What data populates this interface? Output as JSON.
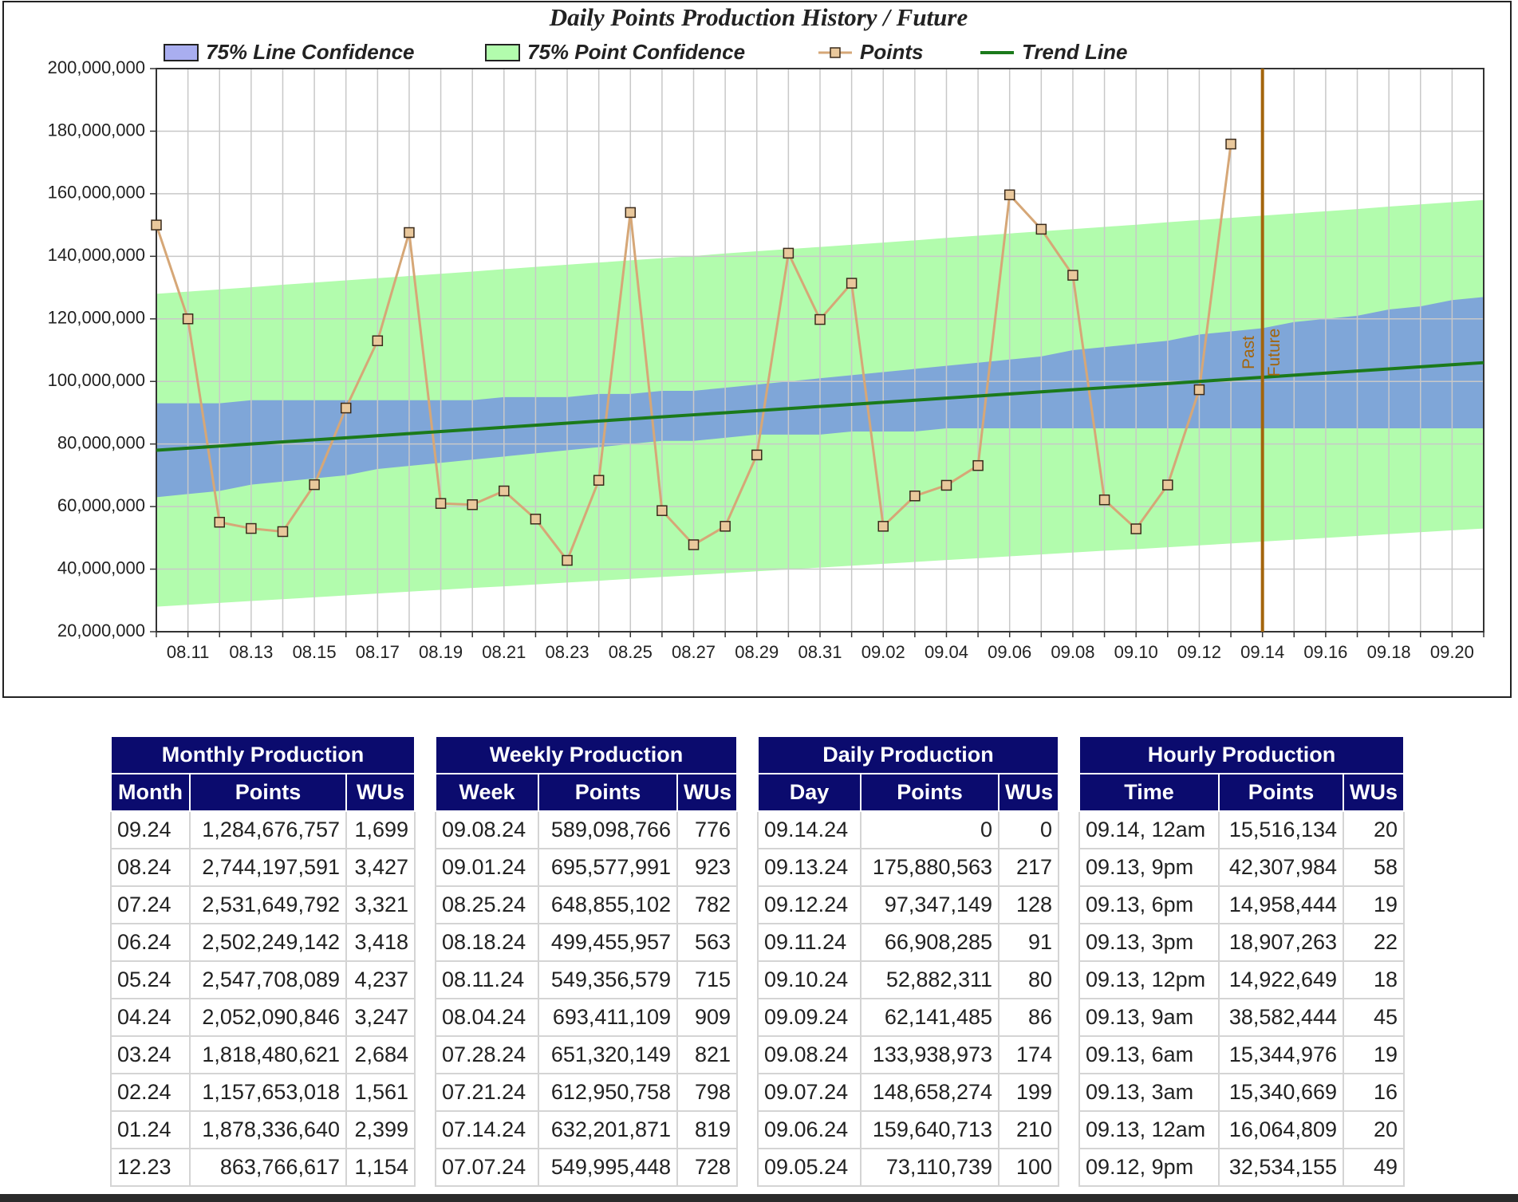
{
  "chart_data": {
    "type": "line",
    "title": "Daily Points Production History / Future",
    "categories": [
      null,
      "08.11",
      null,
      "08.13",
      null,
      "08.15",
      null,
      "08.17",
      null,
      "08.19",
      null,
      "08.21",
      null,
      "08.23",
      null,
      "08.25",
      null,
      "08.27",
      null,
      "08.29",
      null,
      "08.31",
      null,
      "09.02",
      null,
      "09.04",
      null,
      "09.06",
      null,
      "09.08",
      null,
      "09.10",
      null,
      "09.12",
      null,
      "09.14",
      null,
      "09.16",
      null,
      "09.18",
      null,
      "09.20",
      null
    ],
    "ylim": [
      20000000,
      200000000
    ],
    "yticks": [
      {
        "value": 20000000,
        "label": "20,000,000"
      },
      {
        "value": 40000000,
        "label": "40,000,000"
      },
      {
        "value": 60000000,
        "label": "60,000,000"
      },
      {
        "value": 80000000,
        "label": "80,000,000"
      },
      {
        "value": 100000000,
        "label": "100,000,000"
      },
      {
        "value": 120000000,
        "label": "120,000,000"
      },
      {
        "value": 140000000,
        "label": "140,000,000"
      },
      {
        "value": 160000000,
        "label": "160,000,000"
      },
      {
        "value": 180000000,
        "label": "180,000,000"
      },
      {
        "value": 200000000,
        "label": "200,000,000"
      }
    ],
    "grid": true,
    "series": [
      {
        "name": "75% Line Confidence",
        "kind": "band",
        "color": "#7fa6d8",
        "legend_color": "#a9aef0",
        "low": [
          63000000,
          64000000,
          65000000,
          67000000,
          68000000,
          69000000,
          70000000,
          72000000,
          73000000,
          74000000,
          75000000,
          76000000,
          77000000,
          78000000,
          79000000,
          80000000,
          81000000,
          81000000,
          82000000,
          83000000,
          83000000,
          83000000,
          84000000,
          84000000,
          84000000,
          85000000,
          85000000,
          85000000,
          85000000,
          85000000,
          85000000,
          85000000,
          85000000,
          85000000,
          85000000,
          85000000,
          85000000,
          85000000,
          85000000,
          85000000,
          85000000,
          85000000,
          85000000
        ],
        "high": [
          93000000,
          93000000,
          93000000,
          94000000,
          94000000,
          94000000,
          94000000,
          94000000,
          94000000,
          94000000,
          94000000,
          95000000,
          95000000,
          95000000,
          96000000,
          96000000,
          97000000,
          97000000,
          98000000,
          99000000,
          100000000,
          101000000,
          102000000,
          103000000,
          104000000,
          105000000,
          106000000,
          107000000,
          108000000,
          110000000,
          111000000,
          112000000,
          113000000,
          115000000,
          116000000,
          117000000,
          119000000,
          120000000,
          121000000,
          123000000,
          124000000,
          126000000,
          127000000
        ]
      },
      {
        "name": "75% Point Confidence",
        "kind": "band",
        "color": "#b2fcad",
        "legend_color": "#b2fcad",
        "low": [
          28000000,
          28600000,
          29200000,
          29800000,
          30400000,
          31000000,
          31600000,
          32200000,
          32800000,
          33400000,
          34000000,
          34500000,
          35100000,
          35700000,
          36300000,
          36900000,
          37500000,
          38100000,
          38700000,
          39300000,
          39900000,
          40500000,
          41100000,
          41700000,
          42300000,
          42900000,
          43500000,
          44100000,
          44700000,
          45300000,
          45900000,
          46400000,
          47000000,
          47600000,
          48200000,
          48800000,
          49400000,
          50000000,
          50600000,
          51200000,
          51800000,
          52400000,
          53000000
        ],
        "high": [
          128000000,
          128700000,
          129400000,
          130100000,
          130900000,
          131600000,
          132300000,
          133000000,
          133700000,
          134400000,
          135100000,
          135900000,
          136600000,
          137300000,
          138000000,
          138700000,
          139400000,
          140100000,
          140900000,
          141600000,
          142300000,
          143000000,
          143700000,
          144400000,
          145100000,
          145900000,
          146600000,
          147300000,
          148000000,
          148700000,
          149400000,
          150100000,
          150900000,
          151600000,
          152300000,
          153000000,
          153700000,
          154400000,
          155100000,
          155900000,
          156600000,
          157300000,
          158000000
        ]
      },
      {
        "name": "Points",
        "kind": "points",
        "color": "#d6a777",
        "marker_color": "#e9c89c",
        "values": [
          150000000,
          120000000,
          55000000,
          53000000,
          52000000,
          67000000,
          91500000,
          113000000,
          147600000,
          61000000,
          60600000,
          65000000,
          56000000,
          42800000,
          68400000,
          154000000,
          58700000,
          47800000,
          53700000,
          76500000,
          141000000,
          119800000,
          131400000,
          53700000,
          63400000,
          66800000,
          73110739,
          159640713,
          148658274,
          133938973,
          62141485,
          52882311,
          66908285,
          97347149,
          175880563,
          null,
          null,
          null,
          null,
          null,
          null,
          null,
          null
        ]
      },
      {
        "name": "Trend Line",
        "kind": "line",
        "color": "#1b7a1b",
        "values": [
          78000000,
          78666667,
          79333333,
          80000000,
          80666667,
          81333333,
          82000000,
          82666667,
          83333333,
          84000000,
          84666667,
          85333333,
          86000000,
          86666667,
          87333333,
          88000000,
          88666667,
          89333333,
          90000000,
          90666667,
          91333333,
          92000000,
          92666667,
          93333333,
          94000000,
          94666667,
          95333333,
          96000000,
          96666667,
          97333333,
          98000000,
          98666667,
          99333333,
          100000000,
          100666667,
          101333333,
          102000000,
          102666667,
          103333333,
          104000000,
          104666667,
          105333333,
          106000000
        ]
      }
    ],
    "divider": {
      "x": "09.14",
      "labels": [
        "Past",
        "Future"
      ],
      "color": "#a3650c"
    }
  },
  "tables": [
    {
      "title": "Monthly Production",
      "columns": [
        "Month",
        "Points",
        "WUs"
      ],
      "rows": [
        [
          "09.24",
          "1,284,676,757",
          "1,699"
        ],
        [
          "08.24",
          "2,744,197,591",
          "3,427"
        ],
        [
          "07.24",
          "2,531,649,792",
          "3,321"
        ],
        [
          "06.24",
          "2,502,249,142",
          "3,418"
        ],
        [
          "05.24",
          "2,547,708,089",
          "4,237"
        ],
        [
          "04.24",
          "2,052,090,846",
          "3,247"
        ],
        [
          "03.24",
          "1,818,480,621",
          "2,684"
        ],
        [
          "02.24",
          "1,157,653,018",
          "1,561"
        ],
        [
          "01.24",
          "1,878,336,640",
          "2,399"
        ],
        [
          "12.23",
          "863,766,617",
          "1,154"
        ]
      ]
    },
    {
      "title": "Weekly Production",
      "columns": [
        "Week",
        "Points",
        "WUs"
      ],
      "rows": [
        [
          "09.08.24",
          "589,098,766",
          "776"
        ],
        [
          "09.01.24",
          "695,577,991",
          "923"
        ],
        [
          "08.25.24",
          "648,855,102",
          "782"
        ],
        [
          "08.18.24",
          "499,455,957",
          "563"
        ],
        [
          "08.11.24",
          "549,356,579",
          "715"
        ],
        [
          "08.04.24",
          "693,411,109",
          "909"
        ],
        [
          "07.28.24",
          "651,320,149",
          "821"
        ],
        [
          "07.21.24",
          "612,950,758",
          "798"
        ],
        [
          "07.14.24",
          "632,201,871",
          "819"
        ],
        [
          "07.07.24",
          "549,995,448",
          "728"
        ]
      ]
    },
    {
      "title": "Daily Production",
      "columns": [
        "Day",
        "Points",
        "WUs"
      ],
      "rows": [
        [
          "09.14.24",
          "0",
          "0"
        ],
        [
          "09.13.24",
          "175,880,563",
          "217"
        ],
        [
          "09.12.24",
          "97,347,149",
          "128"
        ],
        [
          "09.11.24",
          "66,908,285",
          "91"
        ],
        [
          "09.10.24",
          "52,882,311",
          "80"
        ],
        [
          "09.09.24",
          "62,141,485",
          "86"
        ],
        [
          "09.08.24",
          "133,938,973",
          "174"
        ],
        [
          "09.07.24",
          "148,658,274",
          "199"
        ],
        [
          "09.06.24",
          "159,640,713",
          "210"
        ],
        [
          "09.05.24",
          "73,110,739",
          "100"
        ]
      ]
    },
    {
      "title": "Hourly Production",
      "columns": [
        "Time",
        "Points",
        "WUs"
      ],
      "rows": [
        [
          "09.14, 12am",
          "15,516,134",
          "20"
        ],
        [
          "09.13, 9pm",
          "42,307,984",
          "58"
        ],
        [
          "09.13, 6pm",
          "14,958,444",
          "19"
        ],
        [
          "09.13, 3pm",
          "18,907,263",
          "22"
        ],
        [
          "09.13, 12pm",
          "14,922,649",
          "18"
        ],
        [
          "09.13, 9am",
          "38,582,444",
          "45"
        ],
        [
          "09.13, 6am",
          "15,344,976",
          "19"
        ],
        [
          "09.13, 3am",
          "15,340,669",
          "16"
        ],
        [
          "09.13, 12am",
          "16,064,809",
          "20"
        ],
        [
          "09.12, 9pm",
          "32,534,155",
          "49"
        ]
      ]
    }
  ]
}
